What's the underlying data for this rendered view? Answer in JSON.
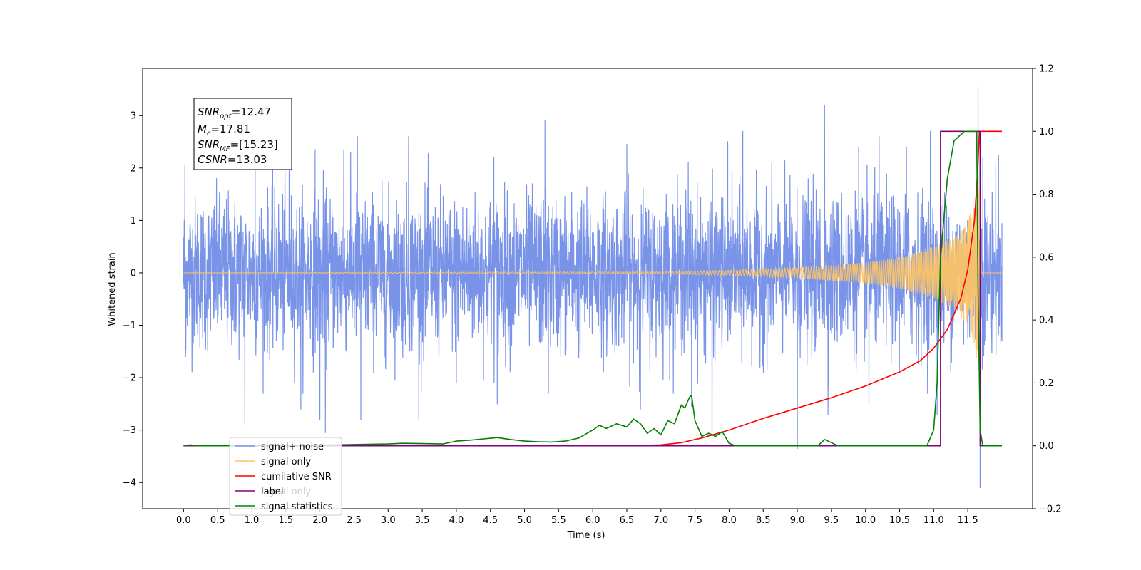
{
  "chart_data": {
    "type": "line",
    "xlabel": "Time (s)",
    "ylabel": "Whitened strain",
    "xlim": [
      -0.6,
      12.45
    ],
    "ylim": [
      -4.5,
      3.9
    ],
    "y2lim": [
      -0.2,
      1.2
    ],
    "grid": false,
    "legend_position": "bottom-left",
    "x_ticks": [
      "0.0",
      "0.5",
      "1.0",
      "1.5",
      "2.0",
      "2.5",
      "3.0",
      "3.5",
      "4.0",
      "4.5",
      "5.0",
      "5.5",
      "6.0",
      "6.5",
      "7.0",
      "7.5",
      "8.0",
      "8.5",
      "9.0",
      "9.5",
      "10.0",
      "10.5",
      "11.0",
      "11.5"
    ],
    "y_ticks": [
      "3",
      "2",
      "1",
      "0",
      "−1",
      "−2",
      "−3",
      "−4"
    ],
    "y2_ticks": [
      "1.2",
      "1.0",
      "0.8",
      "0.6",
      "0.4",
      "0.2",
      "0.0",
      "−0.2"
    ],
    "annotation": {
      "lines": [
        {
          "sym": "SNR",
          "sub": "opt",
          "val": "=12.47"
        },
        {
          "sym": "M",
          "sub": "c",
          "val": "=17.81"
        },
        {
          "sym": "SNR",
          "sub": "MF",
          "val": "=[15.23]"
        },
        {
          "sym": "CSNR",
          "sub": "",
          "val": "=13.03"
        }
      ]
    },
    "legend": [
      {
        "label": "signal+ noise",
        "color": "#7893e8"
      },
      {
        "label": "signal only",
        "color": "#ffc560"
      },
      {
        "label": "cumilative SNR",
        "color": "#ff0000"
      },
      {
        "label": "label",
        "overlapped_label": "signal only",
        "color": "#800080"
      },
      {
        "label": "signal statistics",
        "color": "#008000"
      }
    ],
    "series": [
      {
        "name": "signal+ noise",
        "axis": "left",
        "color": "#7893e8",
        "kind": "noise_envelope",
        "x_start": 0.0,
        "x_end": 12.0,
        "typical_range": [
          -1.6,
          1.6
        ],
        "extremes": [
          [
            0.02,
            2.05
          ],
          [
            0.03,
            -1.6
          ],
          [
            0.9,
            -2.9
          ],
          [
            1.05,
            2.1
          ],
          [
            1.55,
            2.5
          ],
          [
            1.72,
            -2.6
          ],
          [
            1.93,
            2.35
          ],
          [
            2.0,
            -2.8
          ],
          [
            2.05,
            1.95
          ],
          [
            2.08,
            -3.05
          ],
          [
            2.35,
            2.35
          ],
          [
            2.55,
            2.6
          ],
          [
            2.6,
            -2.8
          ],
          [
            3.3,
            2.6
          ],
          [
            3.45,
            -2.8
          ],
          [
            4.0,
            -2.1
          ],
          [
            4.55,
            2.2
          ],
          [
            4.6,
            -2.5
          ],
          [
            5.3,
            2.9
          ],
          [
            5.35,
            -2.3
          ],
          [
            6.5,
            2.45
          ],
          [
            6.7,
            -2.6
          ],
          [
            7.4,
            2.1
          ],
          [
            7.45,
            -2.55
          ],
          [
            7.75,
            -3.1
          ],
          [
            7.98,
            2.5
          ],
          [
            8.2,
            2.7
          ],
          [
            9.0,
            -3.35
          ],
          [
            9.4,
            3.2
          ],
          [
            9.45,
            -2.7
          ],
          [
            9.9,
            2.4
          ],
          [
            10.05,
            -2.5
          ],
          [
            10.2,
            2.6
          ],
          [
            10.6,
            2.4
          ],
          [
            10.95,
            2.7
          ],
          [
            11.05,
            -2.7
          ],
          [
            11.65,
            3.55
          ],
          [
            11.68,
            -4.1
          ],
          [
            11.72,
            2.2
          ],
          [
            11.95,
            2.25
          ],
          [
            12.0,
            -1.3
          ]
        ]
      },
      {
        "name": "signal only",
        "axis": "left",
        "color": "#ffc560",
        "kind": "chirp",
        "t_c": 11.7,
        "envelope_samples": [
          [
            0.0,
            0.0
          ],
          [
            7.0,
            0.02
          ],
          [
            8.0,
            0.05
          ],
          [
            9.0,
            0.1
          ],
          [
            10.0,
            0.2
          ],
          [
            10.5,
            0.3
          ],
          [
            11.0,
            0.5
          ],
          [
            11.3,
            0.7
          ],
          [
            11.5,
            1.0
          ],
          [
            11.6,
            1.4
          ],
          [
            11.65,
            1.9
          ],
          [
            11.7,
            0.0
          ]
        ]
      },
      {
        "name": "cumilative SNR",
        "axis": "right",
        "color": "#ff0000",
        "x": [
          0.0,
          6.5,
          7.0,
          7.3,
          7.6,
          8.0,
          8.5,
          9.0,
          9.5,
          10.0,
          10.5,
          10.8,
          11.0,
          11.2,
          11.4,
          11.5,
          11.6,
          11.65,
          11.67,
          12.0
        ],
        "values": [
          0.0,
          0.0,
          0.003,
          0.01,
          0.025,
          0.05,
          0.087,
          0.12,
          0.153,
          0.19,
          0.235,
          0.27,
          0.31,
          0.37,
          0.47,
          0.56,
          0.72,
          0.9,
          1.0,
          1.0
        ]
      },
      {
        "name": "label",
        "axis": "right",
        "color": "#800080",
        "x": [
          0.0,
          11.1,
          11.1,
          11.68,
          11.68,
          12.0
        ],
        "values": [
          0.0,
          0.0,
          1.0,
          1.0,
          0.0,
          0.0
        ]
      },
      {
        "name": "signal statistics",
        "axis": "right",
        "color": "#008000",
        "x": [
          0.0,
          0.1,
          0.2,
          0.5,
          1.0,
          1.5,
          2.0,
          2.5,
          3.0,
          3.2,
          3.5,
          3.8,
          4.0,
          4.2,
          4.4,
          4.6,
          4.8,
          5.0,
          5.2,
          5.4,
          5.6,
          5.8,
          6.0,
          6.1,
          6.2,
          6.35,
          6.5,
          6.6,
          6.7,
          6.8,
          6.9,
          7.0,
          7.1,
          7.2,
          7.3,
          7.35,
          7.42,
          7.45,
          7.5,
          7.6,
          7.7,
          7.8,
          7.9,
          8.0,
          8.1,
          8.5,
          9.0,
          9.3,
          9.4,
          9.5,
          9.6,
          10.5,
          10.9,
          11.0,
          11.05,
          11.1,
          11.2,
          11.3,
          11.45,
          11.63,
          11.65,
          11.68,
          11.72,
          11.75,
          12.0
        ],
        "values": [
          0.0,
          0.003,
          0.0,
          0.0,
          0.0,
          0.001,
          0.002,
          0.004,
          0.006,
          0.008,
          0.007,
          0.006,
          0.015,
          0.018,
          0.022,
          0.026,
          0.02,
          0.015,
          0.013,
          0.012,
          0.015,
          0.025,
          0.05,
          0.065,
          0.055,
          0.07,
          0.06,
          0.085,
          0.07,
          0.04,
          0.055,
          0.035,
          0.08,
          0.07,
          0.13,
          0.12,
          0.155,
          0.16,
          0.08,
          0.03,
          0.04,
          0.03,
          0.045,
          0.008,
          0.0,
          0.0,
          0.0,
          0.0,
          0.02,
          0.01,
          0.0,
          0.0,
          0.0,
          0.05,
          0.2,
          0.6,
          0.85,
          0.97,
          1.0,
          1.0,
          0.5,
          0.05,
          0.0,
          0.0,
          0.0
        ]
      }
    ]
  }
}
